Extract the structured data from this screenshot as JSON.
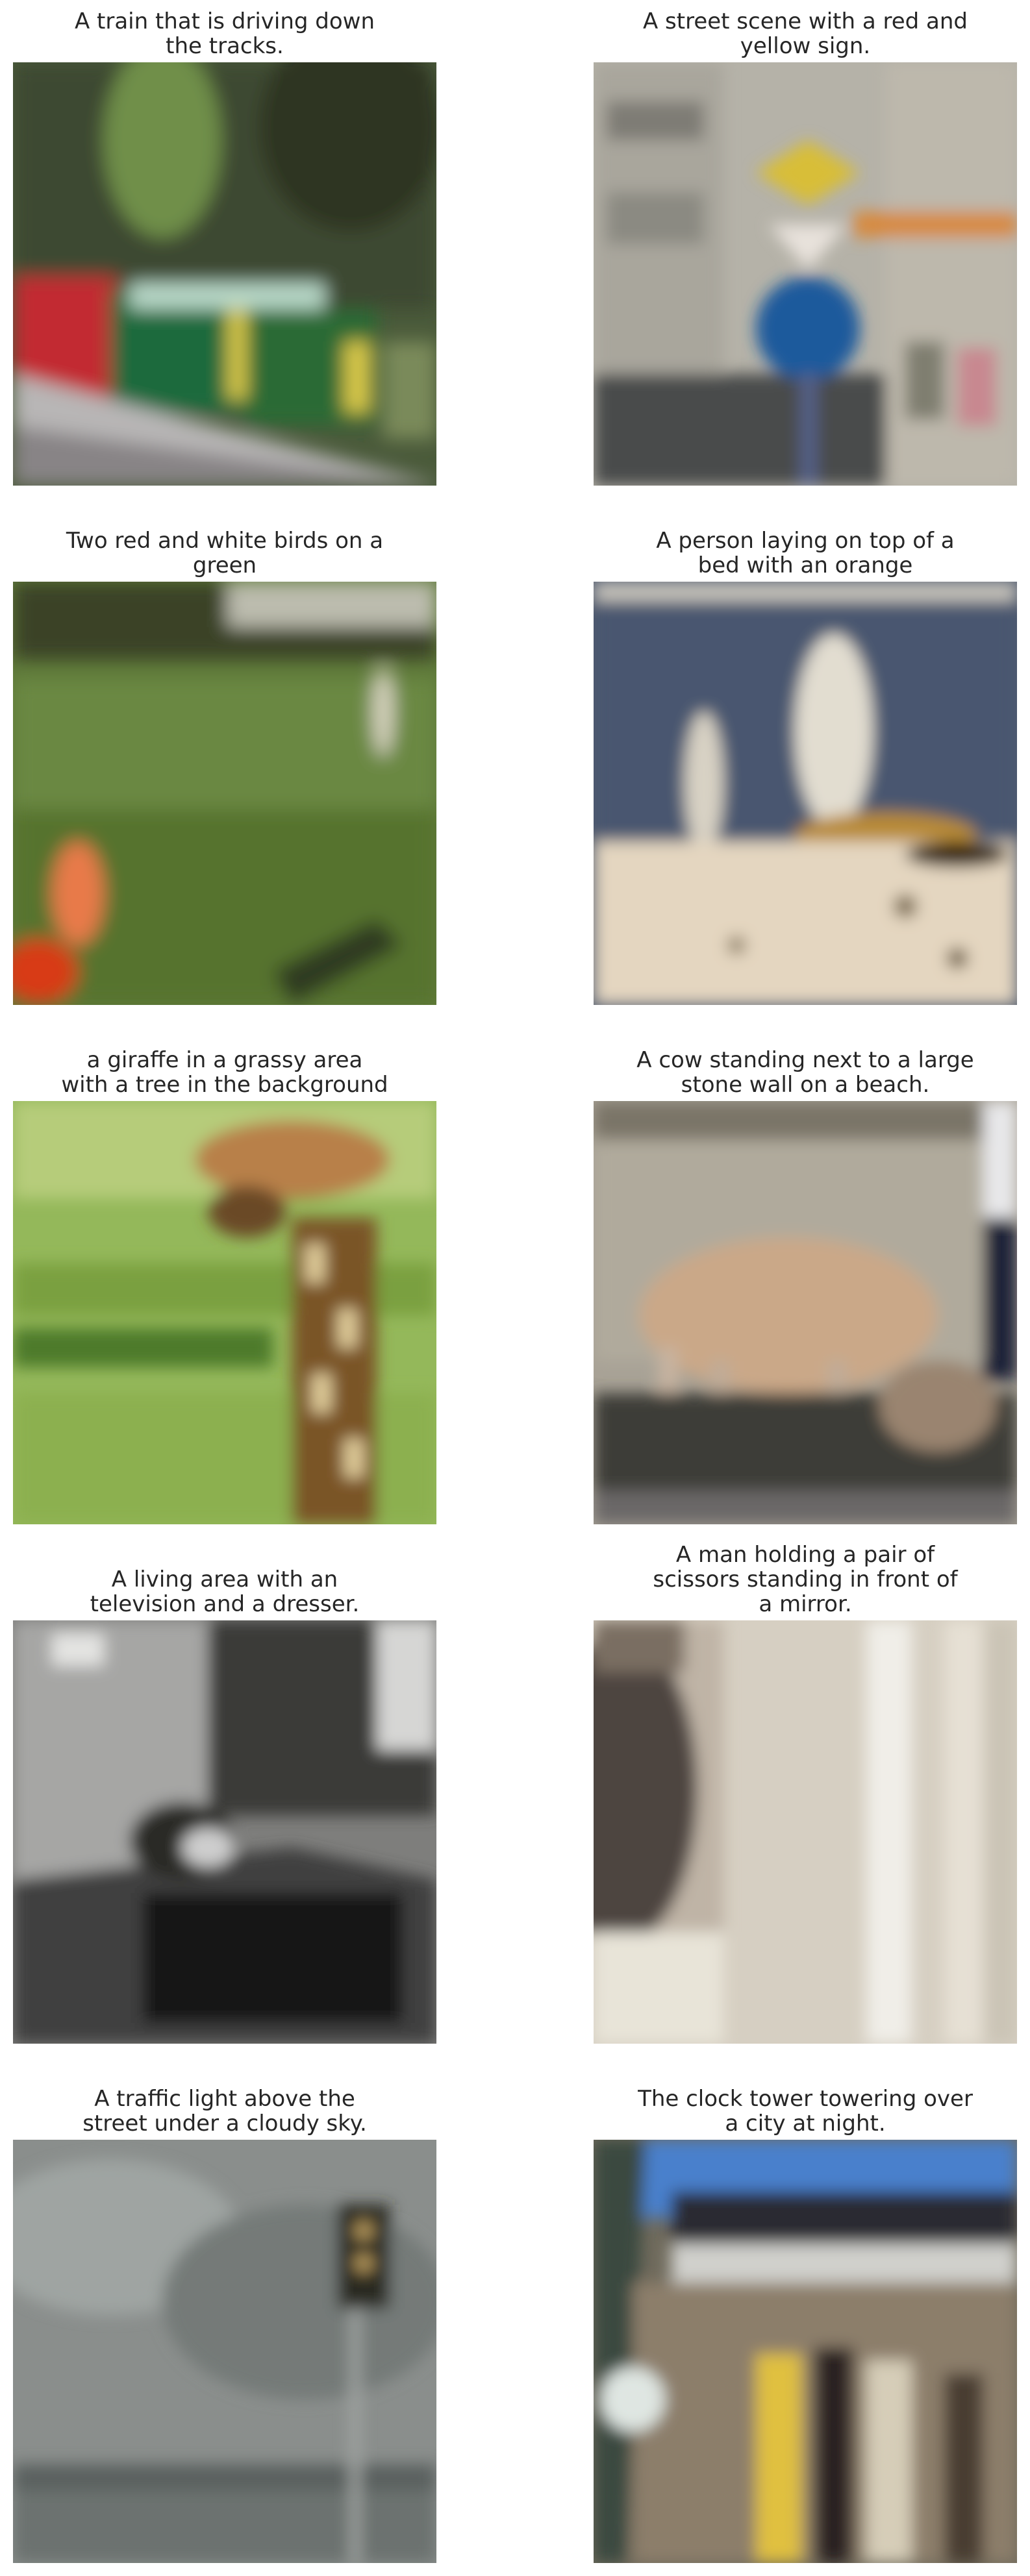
{
  "grid": {
    "cells": [
      {
        "caption": "A train that is driving down\nthe tracks.",
        "image": "train-photo"
      },
      {
        "caption": "A street scene with a red  and\nyellow sign.",
        "image": "street-sign-photo"
      },
      {
        "caption": "Two red and white birds on a\ngreen",
        "image": "birds-field-photo"
      },
      {
        "caption": "A person laying on top of a\nbed with an orange",
        "image": "seagulls-photo"
      },
      {
        "caption": "a giraffe in a grassy area\nwith a tree in the background",
        "image": "giraffe-photo"
      },
      {
        "caption": "A cow standing next to a large\nstone wall on a beach.",
        "image": "cow-photo"
      },
      {
        "caption": "A living area with an\ntelevision and a dresser.",
        "image": "living-room-photo"
      },
      {
        "caption": "A man holding a pair of\nscissors standing in front of\na mirror.",
        "image": "man-mirror-photo"
      },
      {
        "caption": "A traffic light above the\nstreet under a cloudy sky.",
        "image": "traffic-light-photo"
      },
      {
        "caption": "The clock tower towering over\na city at night.",
        "image": "clock-tower-photo"
      }
    ]
  }
}
